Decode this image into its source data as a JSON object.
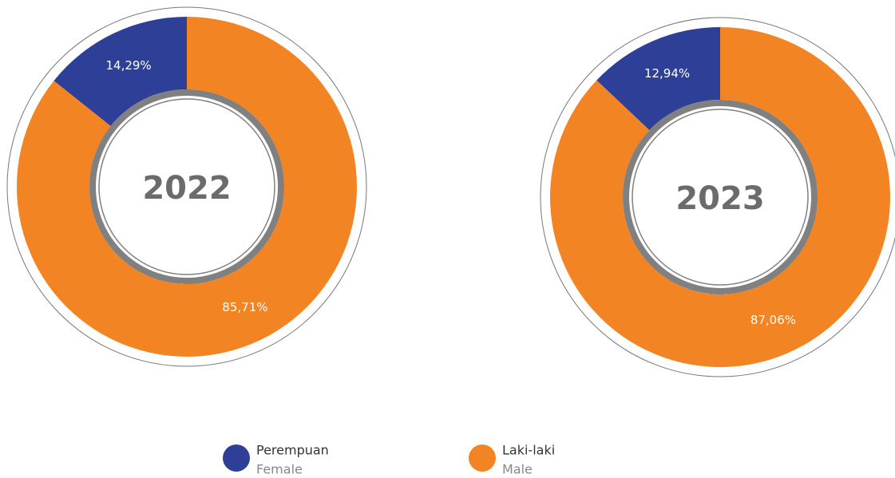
{
  "chart_data": [
    {
      "type": "pie",
      "title": "2022",
      "categories": [
        "Perempuan",
        "Laki-laki"
      ],
      "values": [
        14.29,
        85.71
      ],
      "value_labels": [
        "14,29%",
        "85,71%"
      ],
      "colors": [
        "#2e3f97",
        "#f28423"
      ]
    },
    {
      "type": "pie",
      "title": "2023",
      "categories": [
        "Perempuan",
        "Laki-laki"
      ],
      "values": [
        12.94,
        87.06
      ],
      "value_labels": [
        "12,94%",
        "87,06%"
      ],
      "colors": [
        "#2e3f97",
        "#f28423"
      ]
    }
  ],
  "legend": [
    {
      "label": "Perempuan",
      "sublabel": "Female"
    },
    {
      "label": "Laki-laki",
      "sublabel": "Male"
    }
  ]
}
